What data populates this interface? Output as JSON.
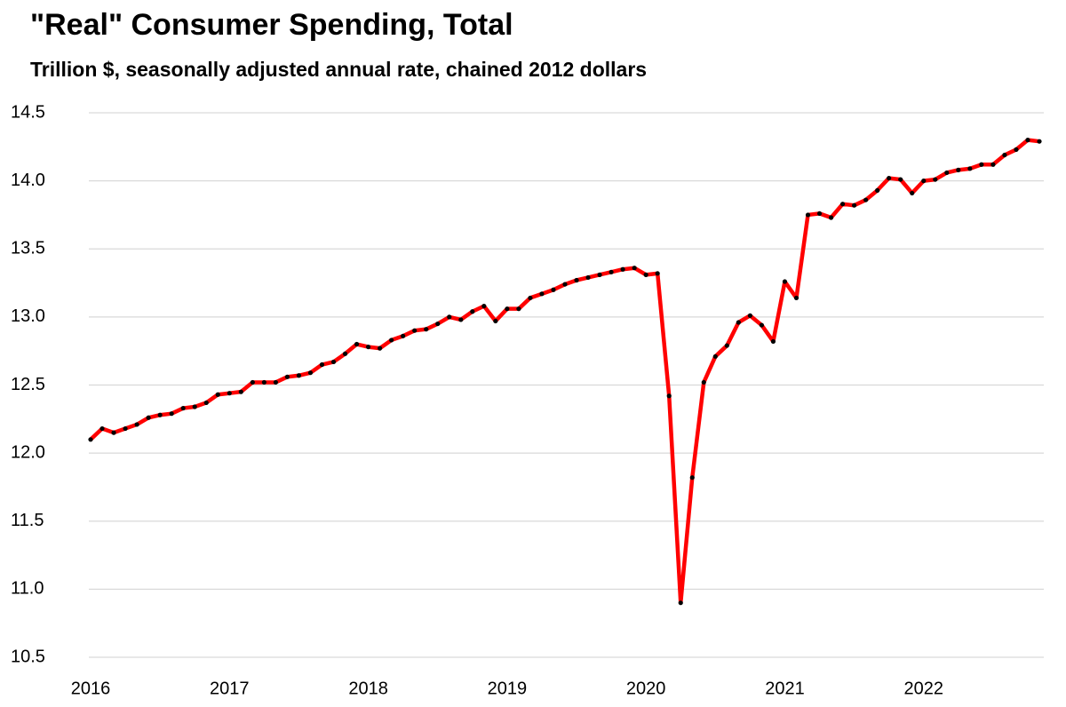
{
  "chart_data": {
    "type": "line",
    "title": "\"Real\" Consumer Spending, Total",
    "subtitle": "Trillion $, seasonally adjusted annual rate, chained 2012 dollars",
    "x": [
      "2016-01",
      "2016-02",
      "2016-03",
      "2016-04",
      "2016-05",
      "2016-06",
      "2016-07",
      "2016-08",
      "2016-09",
      "2016-10",
      "2016-11",
      "2016-12",
      "2017-01",
      "2017-02",
      "2017-03",
      "2017-04",
      "2017-05",
      "2017-06",
      "2017-07",
      "2017-08",
      "2017-09",
      "2017-10",
      "2017-11",
      "2017-12",
      "2018-01",
      "2018-02",
      "2018-03",
      "2018-04",
      "2018-05",
      "2018-06",
      "2018-07",
      "2018-08",
      "2018-09",
      "2018-10",
      "2018-11",
      "2018-12",
      "2019-01",
      "2019-02",
      "2019-03",
      "2019-04",
      "2019-05",
      "2019-06",
      "2019-07",
      "2019-08",
      "2019-09",
      "2019-10",
      "2019-11",
      "2019-12",
      "2020-01",
      "2020-02",
      "2020-03",
      "2020-04",
      "2020-05",
      "2020-06",
      "2020-07",
      "2020-08",
      "2020-09",
      "2020-10",
      "2020-11",
      "2020-12",
      "2021-01",
      "2021-02",
      "2021-03",
      "2021-04",
      "2021-05",
      "2021-06",
      "2021-07",
      "2021-08",
      "2021-09",
      "2021-10",
      "2021-11",
      "2021-12",
      "2022-01",
      "2022-02",
      "2022-03",
      "2022-04",
      "2022-05",
      "2022-06",
      "2022-07",
      "2022-08",
      "2022-09",
      "2022-10",
      "2022-11"
    ],
    "values": [
      12.1,
      12.18,
      12.15,
      12.18,
      12.21,
      12.26,
      12.28,
      12.29,
      12.33,
      12.34,
      12.37,
      12.43,
      12.44,
      12.45,
      12.52,
      12.52,
      12.52,
      12.56,
      12.57,
      12.59,
      12.65,
      12.67,
      12.73,
      12.8,
      12.78,
      12.77,
      12.83,
      12.86,
      12.9,
      12.91,
      12.95,
      13.0,
      12.98,
      13.04,
      13.08,
      12.97,
      13.06,
      13.06,
      13.14,
      13.17,
      13.2,
      13.24,
      13.27,
      13.29,
      13.31,
      13.33,
      13.35,
      13.36,
      13.31,
      13.32,
      12.42,
      10.9,
      11.82,
      12.52,
      12.71,
      12.79,
      12.96,
      13.01,
      12.94,
      12.82,
      13.26,
      13.14,
      13.75,
      13.76,
      13.73,
      13.83,
      13.82,
      13.86,
      13.93,
      14.02,
      14.01,
      13.91,
      14.0,
      14.01,
      14.06,
      14.08,
      14.09,
      14.12,
      14.12,
      14.19,
      14.23,
      14.3,
      14.29
    ],
    "color": "#ff0000",
    "marker_color": "#000000",
    "xlim": [
      "2016-01",
      "2022-11"
    ],
    "xticks": [
      {
        "value": "2016-01",
        "label": "2016"
      },
      {
        "value": "2017-01",
        "label": "2017"
      },
      {
        "value": "2018-01",
        "label": "2018"
      },
      {
        "value": "2019-01",
        "label": "2019"
      },
      {
        "value": "2020-01",
        "label": "2020"
      },
      {
        "value": "2021-01",
        "label": "2021"
      },
      {
        "value": "2022-01",
        "label": "2022"
      }
    ],
    "ylim": [
      10.5,
      14.5
    ],
    "yticks": [
      14.5,
      {
        "value": 14,
        "label": "14.0"
      },
      13.5,
      {
        "value": 13,
        "label": "13.0"
      },
      12.5,
      {
        "value": 12,
        "label": "12.0"
      },
      11.5,
      {
        "value": 11,
        "label": "11.0"
      },
      10.5
    ],
    "grid": true
  }
}
